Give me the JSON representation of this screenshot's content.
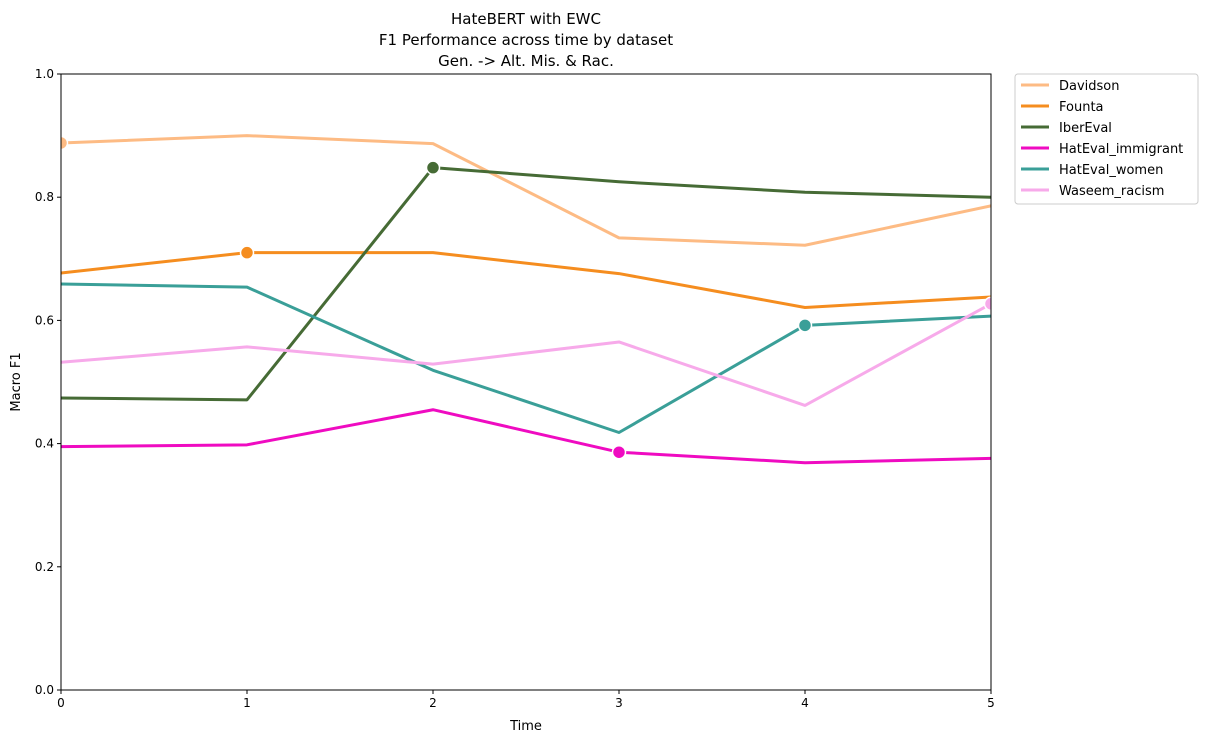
{
  "chart_data": {
    "type": "line",
    "title_lines": [
      "HateBERT with EWC",
      "F1 Performance across time by dataset",
      "Gen. -> Alt. Mis. & Rac."
    ],
    "xlabel": "Time",
    "ylabel": "Macro F1",
    "xlim": [
      0,
      5
    ],
    "ylim": [
      0.0,
      1.0
    ],
    "x_ticks": [
      "0",
      "1",
      "2",
      "3",
      "4",
      "5"
    ],
    "y_ticks": [
      "0.0",
      "0.2",
      "0.4",
      "0.6",
      "0.8",
      "1.0"
    ],
    "x": [
      0,
      1,
      2,
      3,
      4,
      5
    ],
    "grid": false,
    "legend_position": "outside-top-right",
    "series": [
      {
        "name": "Davidson",
        "color": "#fdbb84",
        "values": [
          0.888,
          0.9,
          0.887,
          0.734,
          0.722,
          0.786
        ],
        "marker_index": 0
      },
      {
        "name": "Founta",
        "color": "#f58d1f",
        "values": [
          0.677,
          0.71,
          0.71,
          0.676,
          0.621,
          0.638
        ],
        "marker_index": 1
      },
      {
        "name": "IberEval",
        "color": "#466b35",
        "values": [
          0.474,
          0.471,
          0.848,
          0.825,
          0.808,
          0.8
        ],
        "marker_index": 2
      },
      {
        "name": "HatEval_immigrant",
        "color": "#ef0bc1",
        "values": [
          0.395,
          0.398,
          0.455,
          0.386,
          0.369,
          0.376
        ],
        "marker_index": 3
      },
      {
        "name": "HatEval_women",
        "color": "#3a9f98",
        "values": [
          0.659,
          0.654,
          0.519,
          0.418,
          0.592,
          0.607
        ],
        "marker_index": 4
      },
      {
        "name": "Waseem_racism",
        "color": "#f7aaea",
        "values": [
          0.532,
          0.557,
          0.529,
          0.565,
          0.462,
          0.627
        ],
        "marker_index": 5
      }
    ]
  }
}
